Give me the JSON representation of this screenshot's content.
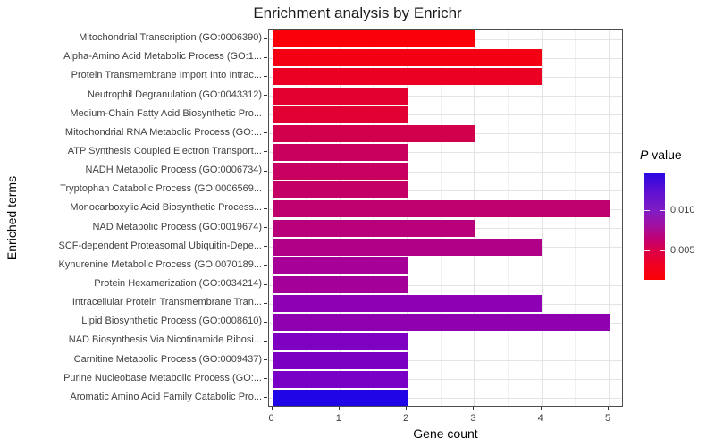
{
  "title": "Enrichment analysis by Enrichr",
  "axes": {
    "x_label": "Gene count",
    "y_label": "Enriched terms"
  },
  "legend": {
    "title_p": "P",
    "title_rest": " value",
    "tick_labels": [
      "0.010",
      "0.005"
    ],
    "low_color": "#fb0105",
    "high_color": "#2b07e2"
  },
  "chart_data": {
    "type": "bar",
    "orientation": "horizontal",
    "title": "Enrichment analysis by Enrichr",
    "xlabel": "Gene count",
    "ylabel": "Enriched terms",
    "xlim": [
      0,
      5.25
    ],
    "x_ticks": [
      "0",
      "1",
      "2",
      "3",
      "4",
      "5"
    ],
    "grid": "major-and-minor",
    "legend_position": "right",
    "color_scale": {
      "label": "P value",
      "low": "red",
      "high": "blue",
      "tick_values": [
        "0.010",
        "0.005"
      ],
      "approx_range": [
        0.0013,
        0.0144
      ]
    },
    "bars": [
      {
        "term": "Mitochondrial Transcription (GO:0006390)",
        "gene_count": 3,
        "color": "#fb0008"
      },
      {
        "term": "Alpha-Amino Acid Metabolic Process (GO:1...",
        "gene_count": 4,
        "color": "#f30013"
      },
      {
        "term": "Protein Transmembrane Import Into Intrac...",
        "gene_count": 4,
        "color": "#eb0023"
      },
      {
        "term": "Neutrophil Degranulation (GO:0043312)",
        "gene_count": 2,
        "color": "#e30030"
      },
      {
        "term": "Medium-Chain Fatty Acid Biosynthetic Pro...",
        "gene_count": 2,
        "color": "#e20032"
      },
      {
        "term": "Mitochondrial RNA Metabolic Process (GO:...",
        "gene_count": 3,
        "color": "#d2004c"
      },
      {
        "term": "ATP Synthesis Coupled Electron Transport...",
        "gene_count": 2,
        "color": "#c9005e"
      },
      {
        "term": "NADH Metabolic Process (GO:0006734)",
        "gene_count": 2,
        "color": "#c70061"
      },
      {
        "term": "Tryptophan Catabolic Process (GO:0006569...",
        "gene_count": 2,
        "color": "#c40066"
      },
      {
        "term": "Monocarboxylic Acid Biosynthetic Process...",
        "gene_count": 5,
        "color": "#be006f"
      },
      {
        "term": "NAD Metabolic Process (GO:0019674)",
        "gene_count": 3,
        "color": "#b70079"
      },
      {
        "term": "SCF-dependent Proteasomal Ubiquitin-Depe...",
        "gene_count": 4,
        "color": "#b00088"
      },
      {
        "term": "Kynurenine Metabolic Process (GO:0070189...",
        "gene_count": 2,
        "color": "#a70096"
      },
      {
        "term": "Protein Hexamerization (GO:0034214)",
        "gene_count": 2,
        "color": "#a40099"
      },
      {
        "term": "Intracellular Protein Transmembrane Tran...",
        "gene_count": 4,
        "color": "#8d00b4"
      },
      {
        "term": "Lipid Biosynthetic Process (GO:0008610)",
        "gene_count": 5,
        "color": "#8e00b0"
      },
      {
        "term": "NAD Biosynthesis Via Nicotinamide Ribosi...",
        "gene_count": 2,
        "color": "#7e00c0"
      },
      {
        "term": "Carnitine Metabolic Process (GO:0009437)",
        "gene_count": 2,
        "color": "#7c00c2"
      },
      {
        "term": "Purine Nucleobase Metabolic Process (GO:...",
        "gene_count": 2,
        "color": "#7900c5"
      },
      {
        "term": "Aromatic Amino Acid Family Catabolic Pro...",
        "gene_count": 2,
        "color": "#2005e6"
      }
    ]
  }
}
